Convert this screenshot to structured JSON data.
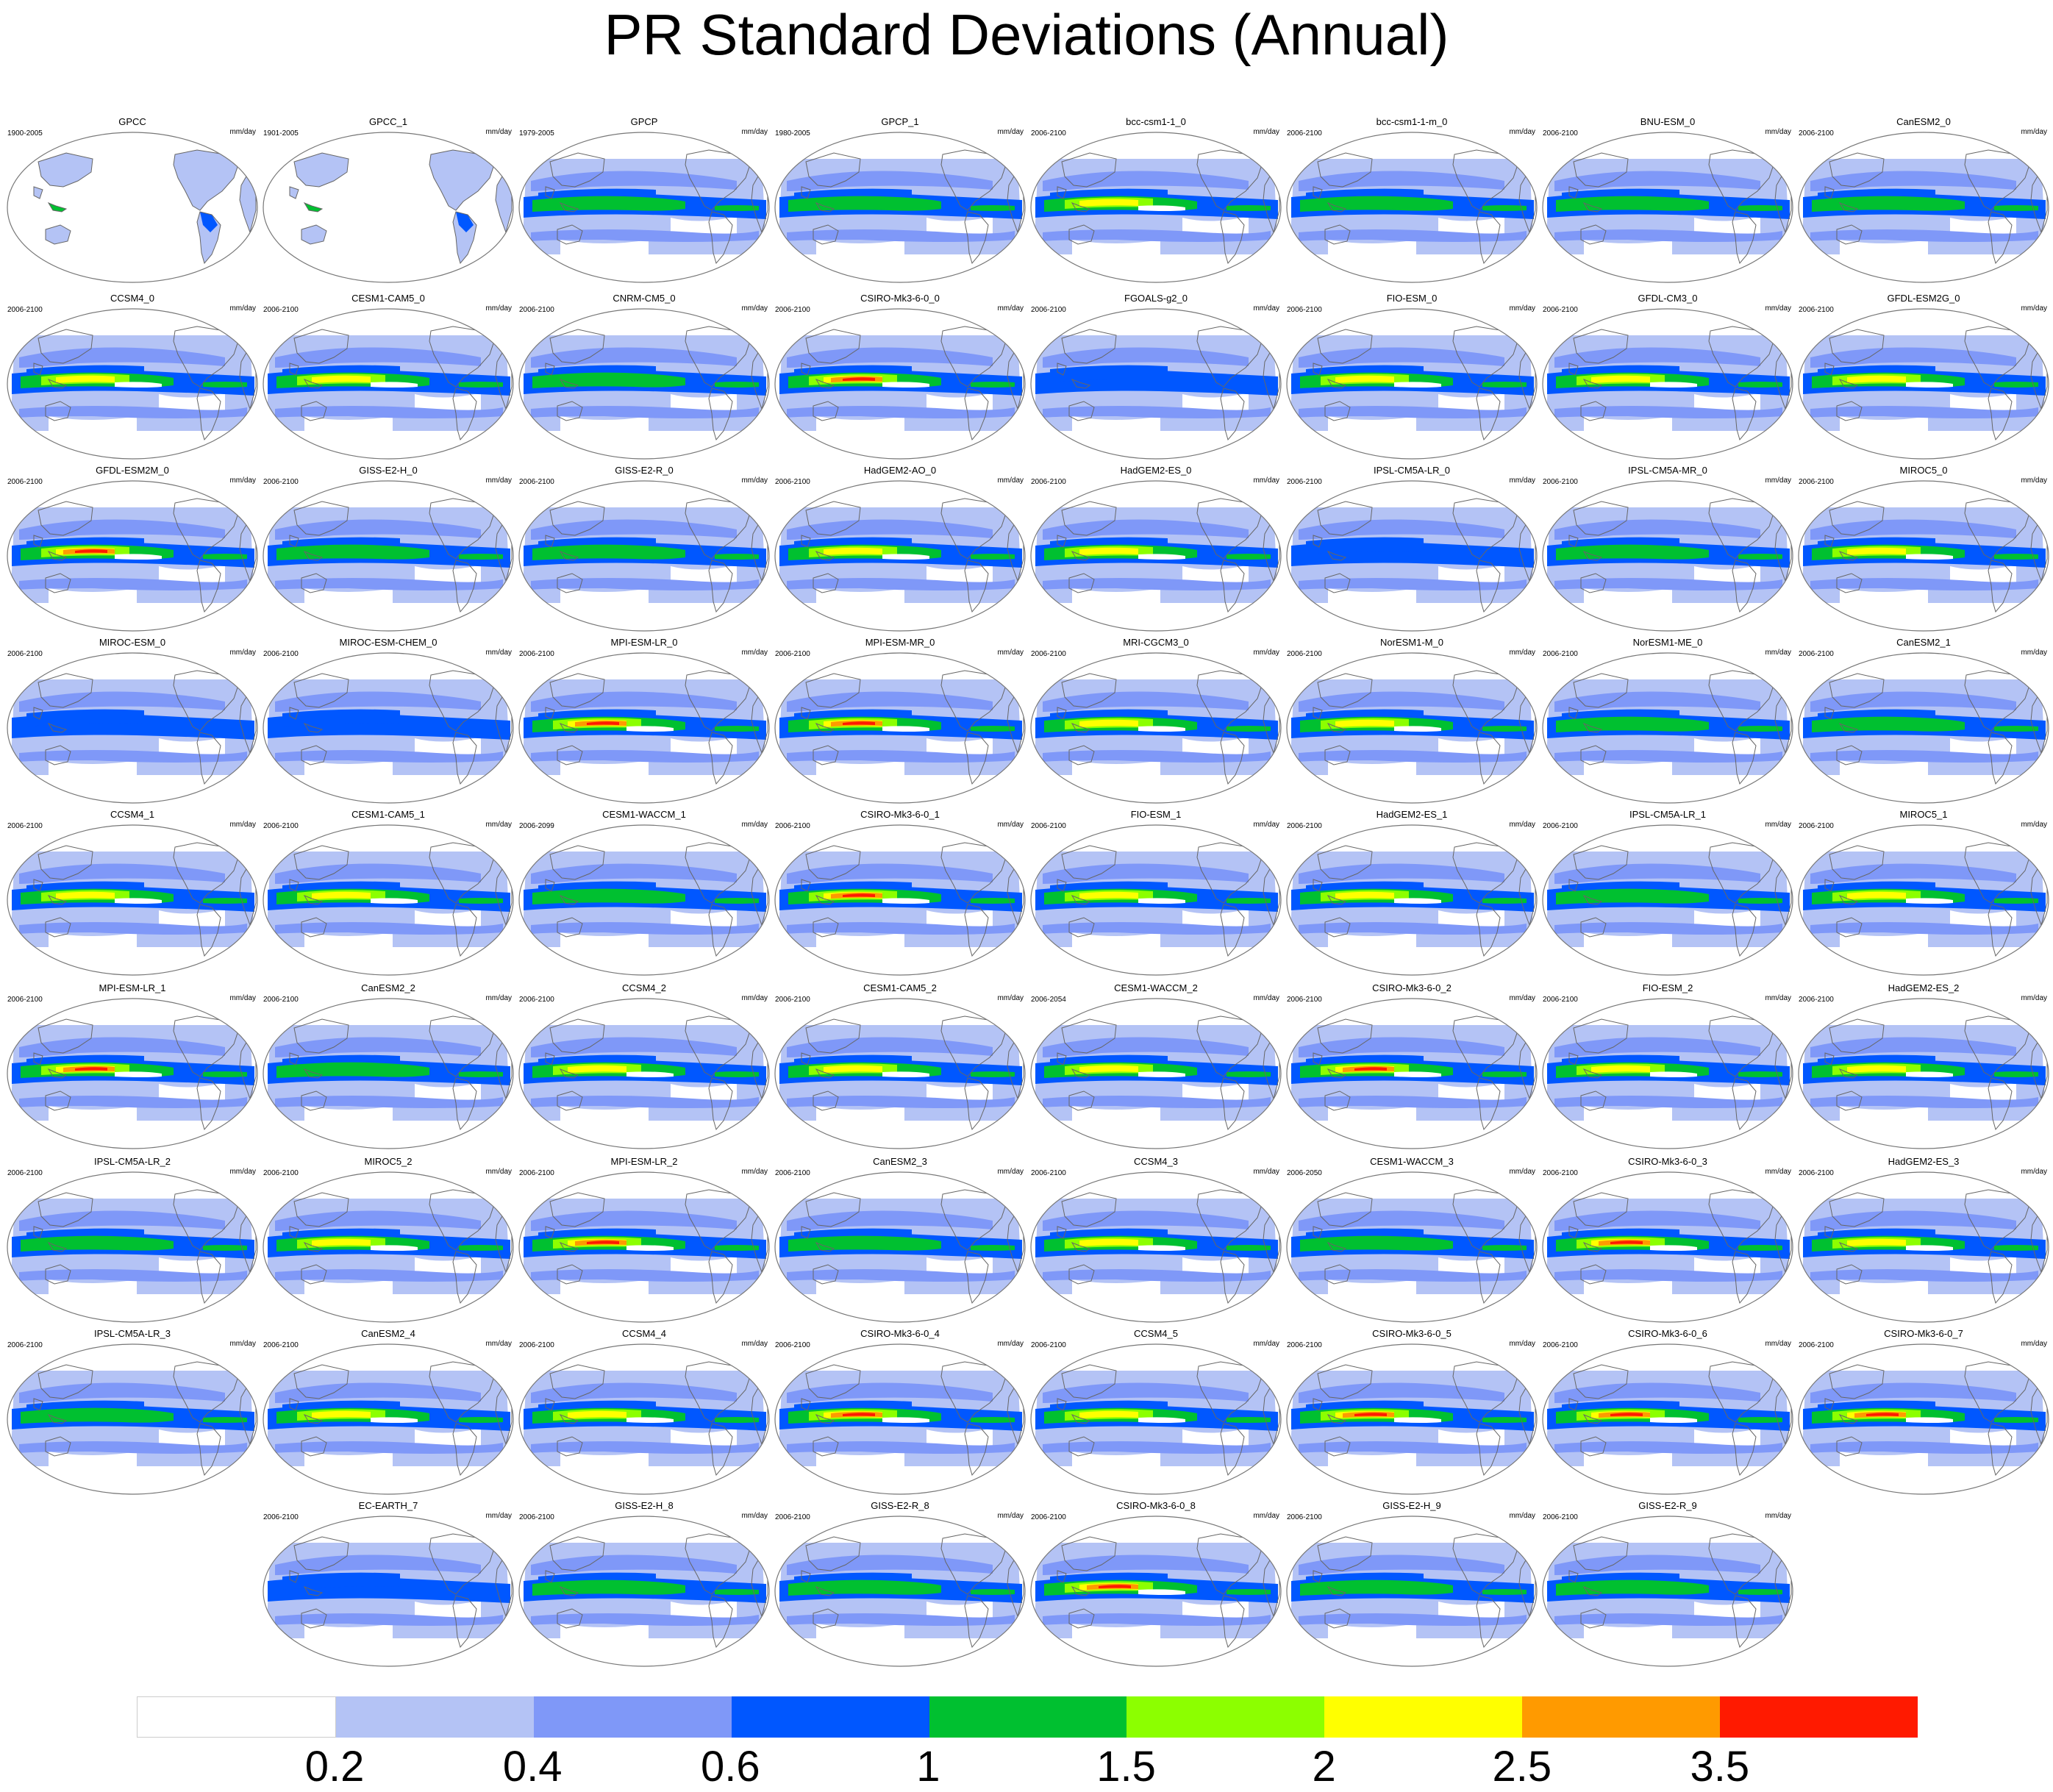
{
  "title": "PR Standard Deviations (Annual)",
  "colors": {
    "levels": [
      "#ffffff",
      "#b4c3f5",
      "#7f98f8",
      "#0057ff",
      "#00c030",
      "#8cff00",
      "#ffff00",
      "#ff9a00",
      "#ff1a00"
    ],
    "land_outline": "#666666",
    "frame": "#777777"
  },
  "colorbar": {
    "labels": [
      "0.2",
      "0.4",
      "0.6",
      "1",
      "1.5",
      "2",
      "2.5",
      "3.5"
    ]
  },
  "panels": [
    {
      "name": "GPCC",
      "years": "1900-2005",
      "units": "mm/day",
      "intensity": 0
    },
    {
      "name": "GPCC_1",
      "years": "1901-2005",
      "units": "mm/day",
      "intensity": 0
    },
    {
      "name": "GPCP",
      "years": "1979-2005",
      "units": "mm/day",
      "intensity": 2
    },
    {
      "name": "GPCP_1",
      "years": "1980-2005",
      "units": "mm/day",
      "intensity": 2
    },
    {
      "name": "bcc-csm1-1_0",
      "years": "2006-2100",
      "units": "mm/day",
      "intensity": 3
    },
    {
      "name": "bcc-csm1-1-m_0",
      "years": "2006-2100",
      "units": "mm/day",
      "intensity": 2
    },
    {
      "name": "BNU-ESM_0",
      "years": "2006-2100",
      "units": "mm/day",
      "intensity": 2
    },
    {
      "name": "CanESM2_0",
      "years": "2006-2100",
      "units": "mm/day",
      "intensity": 2
    },
    {
      "name": "CCSM4_0",
      "years": "2006-2100",
      "units": "mm/day",
      "intensity": 3
    },
    {
      "name": "CESM1-CAM5_0",
      "years": "2006-2100",
      "units": "mm/day",
      "intensity": 3
    },
    {
      "name": "CNRM-CM5_0",
      "years": "2006-2100",
      "units": "mm/day",
      "intensity": 2
    },
    {
      "name": "CSIRO-Mk3-6-0_0",
      "years": "2006-2100",
      "units": "mm/day",
      "intensity": 4
    },
    {
      "name": "FGOALS-g2_0",
      "years": "2006-2100",
      "units": "mm/day",
      "intensity": 1
    },
    {
      "name": "FIO-ESM_0",
      "years": "2006-2100",
      "units": "mm/day",
      "intensity": 3
    },
    {
      "name": "GFDL-CM3_0",
      "years": "2006-2100",
      "units": "mm/day",
      "intensity": 3
    },
    {
      "name": "GFDL-ESM2G_0",
      "years": "2006-2100",
      "units": "mm/day",
      "intensity": 3
    },
    {
      "name": "GFDL-ESM2M_0",
      "years": "2006-2100",
      "units": "mm/day",
      "intensity": 4
    },
    {
      "name": "GISS-E2-H_0",
      "years": "2006-2100",
      "units": "mm/day",
      "intensity": 2
    },
    {
      "name": "GISS-E2-R_0",
      "years": "2006-2100",
      "units": "mm/day",
      "intensity": 2
    },
    {
      "name": "HadGEM2-AO_0",
      "years": "2006-2100",
      "units": "mm/day",
      "intensity": 3
    },
    {
      "name": "HadGEM2-ES_0",
      "years": "2006-2100",
      "units": "mm/day",
      "intensity": 3
    },
    {
      "name": "IPSL-CM5A-LR_0",
      "years": "2006-2100",
      "units": "mm/day",
      "intensity": 1
    },
    {
      "name": "IPSL-CM5A-MR_0",
      "years": "2006-2100",
      "units": "mm/day",
      "intensity": 2
    },
    {
      "name": "MIROC5_0",
      "years": "2006-2100",
      "units": "mm/day",
      "intensity": 3
    },
    {
      "name": "MIROC-ESM_0",
      "years": "2006-2100",
      "units": "mm/day",
      "intensity": 1
    },
    {
      "name": "MIROC-ESM-CHEM_0",
      "years": "2006-2100",
      "units": "mm/day",
      "intensity": 1
    },
    {
      "name": "MPI-ESM-LR_0",
      "years": "2006-2100",
      "units": "mm/day",
      "intensity": 4
    },
    {
      "name": "MPI-ESM-MR_0",
      "years": "2006-2100",
      "units": "mm/day",
      "intensity": 4
    },
    {
      "name": "MRI-CGCM3_0",
      "years": "2006-2100",
      "units": "mm/day",
      "intensity": 3
    },
    {
      "name": "NorESM1-M_0",
      "years": "2006-2100",
      "units": "mm/day",
      "intensity": 3
    },
    {
      "name": "NorESM1-ME_0",
      "years": "2006-2100",
      "units": "mm/day",
      "intensity": 2
    },
    {
      "name": "CanESM2_1",
      "years": "2006-2100",
      "units": "mm/day",
      "intensity": 2
    },
    {
      "name": "CCSM4_1",
      "years": "2006-2100",
      "units": "mm/day",
      "intensity": 3
    },
    {
      "name": "CESM1-CAM5_1",
      "years": "2006-2100",
      "units": "mm/day",
      "intensity": 3
    },
    {
      "name": "CESM1-WACCM_1",
      "years": "2006-2099",
      "units": "mm/day",
      "intensity": 2
    },
    {
      "name": "CSIRO-Mk3-6-0_1",
      "years": "2006-2100",
      "units": "mm/day",
      "intensity": 4
    },
    {
      "name": "FIO-ESM_1",
      "years": "2006-2100",
      "units": "mm/day",
      "intensity": 3
    },
    {
      "name": "HadGEM2-ES_1",
      "years": "2006-2100",
      "units": "mm/day",
      "intensity": 3
    },
    {
      "name": "IPSL-CM5A-LR_1",
      "years": "2006-2100",
      "units": "mm/day",
      "intensity": 2
    },
    {
      "name": "MIROC5_1",
      "years": "2006-2100",
      "units": "mm/day",
      "intensity": 3
    },
    {
      "name": "MPI-ESM-LR_1",
      "years": "2006-2100",
      "units": "mm/day",
      "intensity": 4
    },
    {
      "name": "CanESM2_2",
      "years": "2006-2100",
      "units": "mm/day",
      "intensity": 2
    },
    {
      "name": "CCSM4_2",
      "years": "2006-2100",
      "units": "mm/day",
      "intensity": 3
    },
    {
      "name": "CESM1-CAM5_2",
      "years": "2006-2100",
      "units": "mm/day",
      "intensity": 3
    },
    {
      "name": "CESM1-WACCM_2",
      "years": "2006-2054",
      "units": "mm/day",
      "intensity": 3
    },
    {
      "name": "CSIRO-Mk3-6-0_2",
      "years": "2006-2100",
      "units": "mm/day",
      "intensity": 4
    },
    {
      "name": "FIO-ESM_2",
      "years": "2006-2100",
      "units": "mm/day",
      "intensity": 3
    },
    {
      "name": "HadGEM2-ES_2",
      "years": "2006-2100",
      "units": "mm/day",
      "intensity": 3
    },
    {
      "name": "IPSL-CM5A-LR_2",
      "years": "2006-2100",
      "units": "mm/day",
      "intensity": 2
    },
    {
      "name": "MIROC5_2",
      "years": "2006-2100",
      "units": "mm/day",
      "intensity": 3
    },
    {
      "name": "MPI-ESM-LR_2",
      "years": "2006-2100",
      "units": "mm/day",
      "intensity": 4
    },
    {
      "name": "CanESM2_3",
      "years": "2006-2100",
      "units": "mm/day",
      "intensity": 2
    },
    {
      "name": "CCSM4_3",
      "years": "2006-2100",
      "units": "mm/day",
      "intensity": 3
    },
    {
      "name": "CESM1-WACCM_3",
      "years": "2006-2050",
      "units": "mm/day",
      "intensity": 2
    },
    {
      "name": "CSIRO-Mk3-6-0_3",
      "years": "2006-2100",
      "units": "mm/day",
      "intensity": 4
    },
    {
      "name": "HadGEM2-ES_3",
      "years": "2006-2100",
      "units": "mm/day",
      "intensity": 3
    },
    {
      "name": "IPSL-CM5A-LR_3",
      "years": "2006-2100",
      "units": "mm/day",
      "intensity": 2
    },
    {
      "name": "CanESM2_4",
      "years": "2006-2100",
      "units": "mm/day",
      "intensity": 3
    },
    {
      "name": "CCSM4_4",
      "years": "2006-2100",
      "units": "mm/day",
      "intensity": 3
    },
    {
      "name": "CSIRO-Mk3-6-0_4",
      "years": "2006-2100",
      "units": "mm/day",
      "intensity": 4
    },
    {
      "name": "CCSM4_5",
      "years": "2006-2100",
      "units": "mm/day",
      "intensity": 3
    },
    {
      "name": "CSIRO-Mk3-6-0_5",
      "years": "2006-2100",
      "units": "mm/day",
      "intensity": 4
    },
    {
      "name": "CSIRO-Mk3-6-0_6",
      "years": "2006-2100",
      "units": "mm/day",
      "intensity": 4
    },
    {
      "name": "CSIRO-Mk3-6-0_7",
      "years": "2006-2100",
      "units": "mm/day",
      "intensity": 4
    },
    {
      "name": "EC-EARTH_7",
      "years": "2006-2100",
      "units": "mm/day",
      "intensity": 1
    },
    {
      "name": "GISS-E2-H_8",
      "years": "2006-2100",
      "units": "mm/day",
      "intensity": 2
    },
    {
      "name": "GISS-E2-R_8",
      "years": "2006-2100",
      "units": "mm/day",
      "intensity": 2
    },
    {
      "name": "CSIRO-Mk3-6-0_8",
      "years": "2006-2100",
      "units": "mm/day",
      "intensity": 4
    },
    {
      "name": "GISS-E2-H_9",
      "years": "2006-2100",
      "units": "mm/day",
      "intensity": 2
    },
    {
      "name": "GISS-E2-R_9",
      "years": "2006-2100",
      "units": "mm/day",
      "intensity": 2
    }
  ]
}
